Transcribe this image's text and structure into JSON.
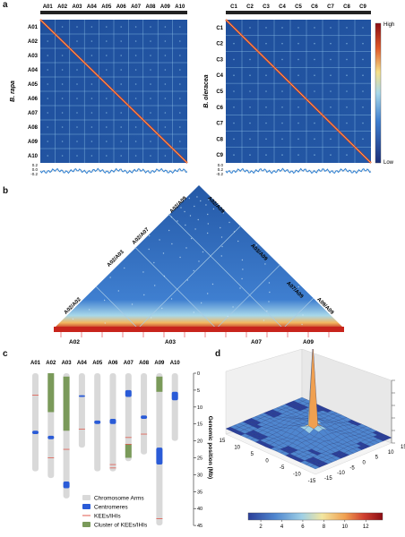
{
  "panel_labels": [
    "a",
    "b",
    "c",
    "d"
  ],
  "panel_a": {
    "left": {
      "species": "B. rapa",
      "chromosomes": [
        "A01",
        "A02",
        "A03",
        "A04",
        "A05",
        "A06",
        "A07",
        "A08",
        "A09",
        "A10"
      ],
      "side_ticks": [
        "0.2",
        "0.0",
        "-0.2"
      ]
    },
    "right": {
      "species": "B. oleracea",
      "chromosomes": [
        "C1",
        "C2",
        "C3",
        "C4",
        "C5",
        "C6",
        "C7",
        "C8",
        "C9"
      ],
      "side_ticks": [
        "0.0",
        "0.2",
        "-0.2"
      ]
    },
    "colorbar": {
      "high": "High",
      "low": "Low",
      "colors": [
        "#1a2f7a",
        "#3f7fd0",
        "#a8d8ea",
        "#f5e08a",
        "#e05a2b",
        "#8b0d14"
      ]
    }
  },
  "panel_b": {
    "pair_labels": [
      "A02/A02",
      "A02/A03",
      "A02/A07",
      "A02/A09",
      "A02/A09",
      "A03/A09",
      "A07/A09",
      "A09/A09"
    ],
    "bottom_labels": [
      "A02",
      "A03",
      "A07",
      "A09"
    ]
  },
  "panel_c": {
    "chromosomes": [
      "A01",
      "A02",
      "A03",
      "A04",
      "A05",
      "A06",
      "A07",
      "A08",
      "A09",
      "A10"
    ],
    "lengths_mb": [
      29,
      31,
      37,
      22,
      29,
      29,
      26,
      24,
      45,
      20
    ],
    "centromeres": [
      [
        17,
        18
      ],
      [
        18.5,
        19.5
      ],
      [
        32,
        34
      ],
      [
        6.5,
        7
      ],
      [
        14,
        15
      ],
      [
        13.5,
        15
      ],
      [
        5,
        7
      ],
      [
        12.5,
        13.5
      ],
      [
        22,
        27
      ],
      [
        5.5,
        8
      ]
    ],
    "kee_clusters": [
      [],
      [
        0,
        11.5
      ],
      [
        1,
        17
      ],
      [],
      [],
      [],
      [
        21,
        25
      ],
      [],
      [
        1,
        5.5
      ],
      []
    ],
    "kee_lines": [
      [
        6.5
      ],
      [
        25
      ],
      [
        22.5
      ],
      [
        16.5
      ],
      [],
      [
        27,
        28
      ],
      [
        19,
        21
      ],
      [
        18
      ],
      [
        43
      ],
      []
    ],
    "axis_label": "Genomic position (Mb)",
    "axis_ticks": [
      "0",
      "5",
      "10",
      "15",
      "20",
      "25",
      "30",
      "35",
      "40",
      "45"
    ],
    "legend": [
      {
        "label": "Chromosome Arms",
        "color": "#d9d9d9"
      },
      {
        "label": "Centromeres",
        "color": "#2a5bd7"
      },
      {
        "label": "KEEs/IHIs",
        "color": "#e05a4f"
      },
      {
        "label": "Cluster of KEEs/IHIs",
        "color": "#7a9a5a"
      }
    ]
  },
  "panel_d": {
    "x_ticks": [
      "-15",
      "-10",
      "-5",
      "0",
      "5",
      "10",
      "15"
    ],
    "y_ticks": [
      "-15",
      "-10",
      "-5",
      "0",
      "5",
      "10",
      "15"
    ],
    "colorbar_ticks": [
      "2",
      "4",
      "6",
      "8",
      "10",
      "12"
    ],
    "colors": [
      "#2b3f99",
      "#4f86cf",
      "#9fd0e6",
      "#f2e6a0",
      "#f0a050",
      "#d04030",
      "#8b0d14"
    ]
  }
}
